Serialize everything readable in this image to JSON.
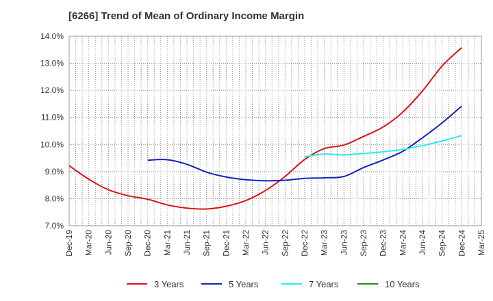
{
  "chart_data": {
    "type": "line",
    "title": "[6266]  Trend of Mean of Ordinary Income Margin",
    "x_categories": [
      "Dec-19",
      "Mar-20",
      "Jun-20",
      "Sep-20",
      "Dec-20",
      "Mar-21",
      "Jun-21",
      "Sep-21",
      "Dec-21",
      "Mar-22",
      "Jun-22",
      "Sep-22",
      "Dec-22",
      "Mar-23",
      "Jun-23",
      "Sep-23",
      "Dec-23",
      "Mar-24",
      "Jun-24",
      "Sep-24",
      "Dec-24",
      "Mar-25"
    ],
    "ylim": [
      7.0,
      14.0
    ],
    "y_ticks": [
      7.0,
      8.0,
      9.0,
      10.0,
      11.0,
      12.0,
      13.0,
      14.0
    ],
    "y_tick_format": "%",
    "grid": true,
    "legend_position": "bottom",
    "series": [
      {
        "name": "3 Years",
        "color": "#dd1111",
        "values": [
          9.22,
          8.72,
          8.33,
          8.11,
          7.98,
          7.77,
          7.65,
          7.62,
          7.72,
          7.93,
          8.3,
          8.82,
          9.45,
          9.85,
          9.98,
          10.3,
          10.65,
          11.2,
          11.98,
          12.9,
          13.58,
          null
        ]
      },
      {
        "name": "5 Years",
        "color": "#1122bb",
        "values": [
          null,
          null,
          null,
          null,
          9.42,
          9.44,
          9.27,
          8.98,
          8.8,
          8.7,
          8.66,
          8.68,
          8.75,
          8.77,
          8.82,
          9.15,
          9.43,
          9.75,
          10.25,
          10.8,
          11.42,
          null
        ]
      },
      {
        "name": "7 Years",
        "color": "#22eeee",
        "values": [
          null,
          null,
          null,
          null,
          null,
          null,
          null,
          null,
          null,
          null,
          null,
          null,
          9.55,
          9.65,
          9.62,
          9.67,
          9.73,
          9.82,
          9.96,
          10.13,
          10.33,
          null
        ]
      },
      {
        "name": "10 Years",
        "color": "#228822",
        "values": [
          null,
          null,
          null,
          null,
          null,
          null,
          null,
          null,
          null,
          null,
          null,
          null,
          null,
          null,
          null,
          null,
          null,
          null,
          null,
          null,
          null,
          null
        ]
      }
    ]
  }
}
